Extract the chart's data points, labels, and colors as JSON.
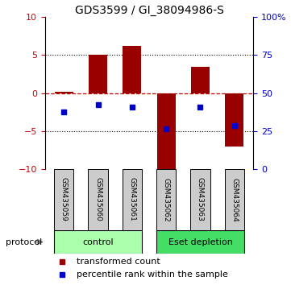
{
  "title": "GDS3599 / GI_38094986-S",
  "samples": [
    "GSM435059",
    "GSM435060",
    "GSM435061",
    "GSM435062",
    "GSM435063",
    "GSM435064"
  ],
  "bar_values": [
    0.2,
    5.0,
    6.2,
    -10.5,
    3.5,
    -7.0
  ],
  "percentile_values": [
    -2.5,
    -1.5,
    -1.8,
    -4.7,
    -1.8,
    -4.3
  ],
  "bar_color": "#990000",
  "blue_color": "#0000cc",
  "dashed_color": "#cc0000",
  "ylim": [
    -10,
    10
  ],
  "yticks_left": [
    -10,
    -5,
    0,
    5,
    10
  ],
  "yticks_right": [
    0,
    25,
    50,
    75,
    100
  ],
  "groups": [
    {
      "label": "control",
      "samples": [
        0,
        1,
        2
      ],
      "color": "#aaffaa"
    },
    {
      "label": "Eset depletion",
      "samples": [
        3,
        4,
        5
      ],
      "color": "#44dd66"
    }
  ],
  "protocol_label": "protocol",
  "legend_items": [
    {
      "label": "transformed count",
      "color": "#990000"
    },
    {
      "label": "percentile rank within the sample",
      "color": "#0000cc"
    }
  ],
  "bar_width": 0.55,
  "left_yaxis_color": "#cc0000",
  "right_yaxis_color": "#0000cc",
  "sample_box_color": "#cccccc",
  "title_fontsize": 10,
  "tick_fontsize": 8,
  "sample_fontsize": 6.5,
  "protocol_fontsize": 8,
  "legend_fontsize": 8
}
